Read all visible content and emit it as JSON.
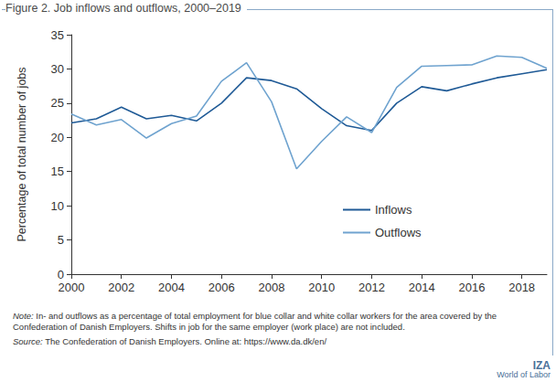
{
  "chart_data": {
    "type": "line",
    "title": "Figure 2. Job inflows and outflows, 2000–2019",
    "y_label": "Percentage of total number of jobs",
    "x": [
      2000,
      2001,
      2002,
      2003,
      2004,
      2005,
      2006,
      2007,
      2008,
      2009,
      2010,
      2011,
      2012,
      2013,
      2014,
      2015,
      2016,
      2017,
      2018,
      2019
    ],
    "series": [
      {
        "name": "Inflows",
        "color": "#1f5a96",
        "values": [
          22.1,
          22.7,
          24.4,
          22.7,
          23.2,
          22.4,
          25.0,
          28.7,
          28.3,
          27.1,
          24.2,
          21.7,
          21.0,
          25.0,
          27.4,
          26.8,
          27.8,
          28.7,
          29.3,
          29.9
        ]
      },
      {
        "name": "Outflows",
        "color": "#6fa3cf",
        "values": [
          23.4,
          21.8,
          22.6,
          19.9,
          22.0,
          23.1,
          28.2,
          30.9,
          25.2,
          15.4,
          19.4,
          23.0,
          20.7,
          27.3,
          30.4,
          30.5,
          30.6,
          31.9,
          31.7,
          30.1
        ]
      }
    ],
    "xlim": [
      2000,
      2019
    ],
    "xticks": [
      2000,
      2002,
      2004,
      2006,
      2008,
      2010,
      2012,
      2014,
      2016,
      2018
    ],
    "ylim": [
      0,
      35
    ],
    "yticks": [
      0,
      5,
      10,
      15,
      20,
      25,
      30,
      35
    ],
    "grid": false,
    "legend": "right",
    "annotations": [
      "Note: In- and outflows as a percentage of total employment for blue collar and white collar workers for the area covered by the Confederation of Danish Employers. Shifts in job for the same employer (work place) are not included.",
      "Source: The Confederation of Danish Employers. Online at: https://www.da.dk/en/"
    ],
    "logo_text": [
      "IZA",
      "World of Labor"
    ]
  }
}
